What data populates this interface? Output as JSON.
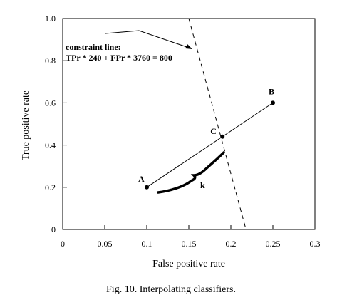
{
  "chart_data": {
    "type": "line",
    "xlabel": "False positive rate",
    "ylabel": "True positive rate",
    "xlim": [
      0,
      0.3
    ],
    "ylim": [
      0,
      1.0
    ],
    "x_ticks": [
      "0",
      "0.05",
      "0.1",
      "0.15",
      "0.2",
      "0.25",
      "0.3"
    ],
    "y_ticks": [
      "0",
      "0.2",
      "0.4",
      "0.6",
      "0.8",
      "1.0"
    ],
    "grid": false,
    "points": [
      {
        "label": "A",
        "x": 0.1,
        "y": 0.2
      },
      {
        "label": "B",
        "x": 0.25,
        "y": 0.6
      },
      {
        "label": "C",
        "x": 0.19,
        "y": 0.44
      }
    ],
    "segment": {
      "from": "A",
      "to": "B"
    },
    "constraint_line": {
      "from": [
        0.15,
        1.0
      ],
      "to": [
        0.218,
        0.0
      ],
      "style": "dashed",
      "annotation_lines": [
        "constraint line:",
        "TPr * 240 + FPr * 3760 = 800"
      ]
    },
    "brace_label": "k"
  },
  "caption": "Fig. 10.  Interpolating classifiers."
}
